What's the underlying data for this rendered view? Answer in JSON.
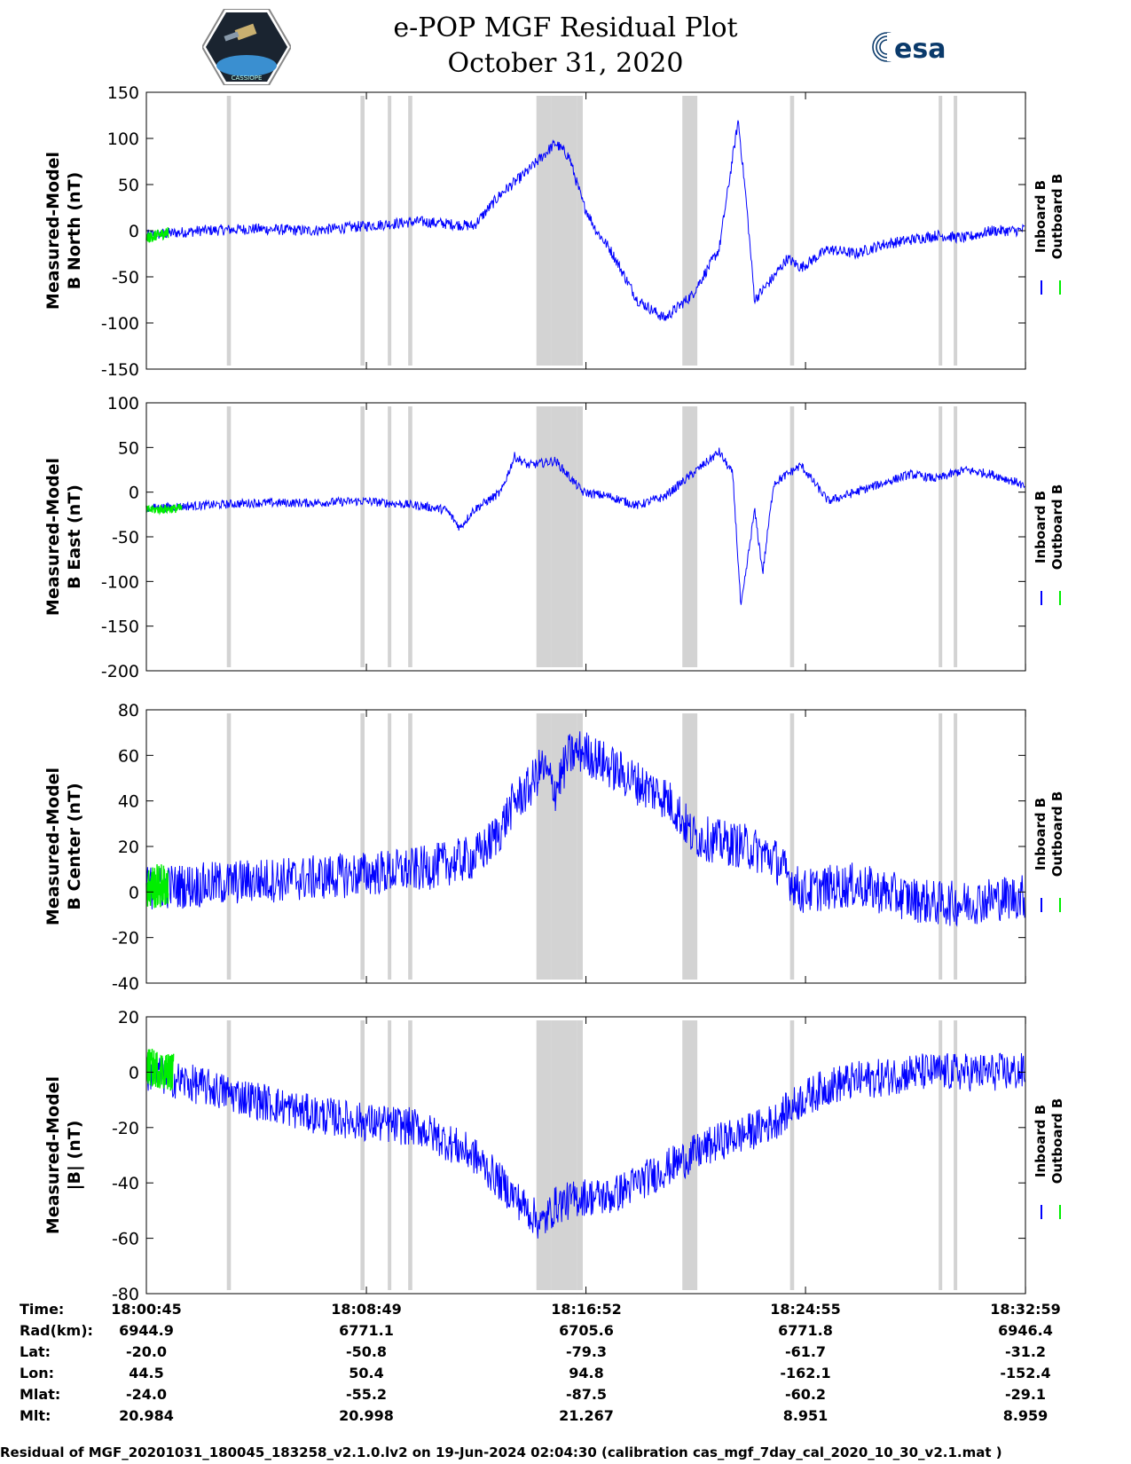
{
  "header": {
    "title_line1": "e-POP MGF Residual Plot",
    "title_line2": "October 31, 2020",
    "left_logo_text": "CASSIOPE",
    "right_logo_text": "esa"
  },
  "colors": {
    "inboard": "#0000ff",
    "outboard": "#00ee00",
    "gap": "#d3d3d3"
  },
  "chart_data": [
    {
      "type": "line",
      "ylabel_line1": "Measured-Model",
      "ylabel_line2": "B North (nT)",
      "ylim": [
        -150,
        150
      ],
      "yticks": [
        150,
        100,
        50,
        0,
        -50,
        -100,
        -150
      ],
      "legend": [
        "Inboard B",
        "Outboard B"
      ],
      "legend_placement": "right",
      "series": [
        {
          "name": "Inboard B",
          "x_min": [
            0,
            2,
            4,
            6,
            8,
            10,
            12,
            13,
            14,
            15,
            15.5,
            16,
            16.5,
            17,
            18,
            19,
            20,
            21,
            21.7,
            22,
            22.3,
            23,
            23.5,
            24,
            25,
            26,
            27,
            28,
            29,
            30,
            31,
            32,
            32.2
          ],
          "y": [
            -5,
            0,
            2,
            0,
            5,
            10,
            5,
            40,
            65,
            95,
            80,
            30,
            0,
            -20,
            -75,
            -95,
            -70,
            -20,
            120,
            30,
            -75,
            -50,
            -30,
            -40,
            -20,
            -25,
            -15,
            -10,
            -5,
            -8,
            0,
            0,
            2
          ]
        },
        {
          "name": "Outboard B",
          "x_min": [
            0,
            0.8
          ],
          "y": [
            -8,
            -2
          ]
        }
      ]
    },
    {
      "type": "line",
      "ylabel_line1": "Measured-Model",
      "ylabel_line2": "B East (nT)",
      "ylim": [
        -200,
        100
      ],
      "yticks": [
        100,
        50,
        0,
        -50,
        -100,
        -150,
        -200
      ],
      "legend": [
        "Inboard B",
        "Outboard B"
      ],
      "legend_placement": "right",
      "series": [
        {
          "name": "Inboard B",
          "x_min": [
            0,
            2,
            4,
            6,
            8,
            10,
            11,
            11.5,
            12,
            13,
            13.5,
            14,
            15,
            16,
            17,
            18,
            19,
            20,
            21,
            21.5,
            21.8,
            22.3,
            22.6,
            23,
            24,
            25,
            26,
            27,
            28,
            29,
            30,
            31,
            32,
            32.2
          ],
          "y": [
            -18,
            -15,
            -12,
            -12,
            -10,
            -15,
            -20,
            -40,
            -20,
            0,
            40,
            30,
            35,
            0,
            -5,
            -15,
            -5,
            20,
            45,
            20,
            -130,
            -20,
            -90,
            10,
            30,
            -10,
            0,
            10,
            20,
            15,
            25,
            20,
            10,
            5
          ]
        },
        {
          "name": "Outboard B",
          "x_min": [
            0,
            1.3
          ],
          "y": [
            -20,
            -18
          ]
        }
      ]
    },
    {
      "type": "line",
      "ylabel_line1": "Measured-Model",
      "ylabel_line2": "B Center (nT)",
      "ylim": [
        -40,
        80
      ],
      "yticks": [
        80,
        60,
        40,
        20,
        0,
        -20,
        -40
      ],
      "legend": [
        "Inboard B",
        "Outboard B"
      ],
      "legend_placement": "right",
      "series": [
        {
          "name": "Inboard B",
          "x_min": [
            0,
            2,
            4,
            6,
            8,
            10,
            12,
            12.5,
            13,
            13.5,
            14,
            14.5,
            15,
            15.5,
            16,
            17,
            18,
            19,
            19.5,
            20,
            21,
            22,
            23,
            24,
            25,
            26,
            27,
            28,
            29,
            30,
            31,
            32,
            32.2
          ],
          "y": [
            2,
            3,
            5,
            6,
            8,
            10,
            15,
            20,
            28,
            40,
            45,
            55,
            45,
            60,
            62,
            55,
            48,
            42,
            35,
            25,
            22,
            20,
            15,
            0,
            2,
            3,
            0,
            -3,
            -5,
            -5,
            -3,
            -2,
            -2
          ]
        },
        {
          "name": "Outboard B",
          "x_min": [
            0,
            0.8
          ],
          "y": [
            2,
            3
          ]
        }
      ]
    },
    {
      "type": "line",
      "ylabel_line1": "Measured-Model",
      "ylabel_line2": "|B| (nT)",
      "ylim": [
        -80,
        20
      ],
      "yticks": [
        20,
        0,
        -20,
        -40,
        -60,
        -80
      ],
      "legend": [
        "Inboard B",
        "Outboard B"
      ],
      "legend_placement": "right",
      "series": [
        {
          "name": "Inboard B",
          "x_min": [
            0,
            2,
            4,
            6,
            8,
            10,
            12,
            13,
            14,
            14.5,
            15,
            16,
            17,
            18,
            19,
            20,
            21,
            22,
            23,
            24,
            25,
            26,
            27,
            28,
            29,
            30,
            31,
            32,
            32.2
          ],
          "y": [
            0,
            -5,
            -10,
            -15,
            -18,
            -20,
            -30,
            -40,
            -50,
            -55,
            -48,
            -45,
            -45,
            -40,
            -35,
            -30,
            -25,
            -22,
            -18,
            -10,
            -5,
            -3,
            -2,
            0,
            0,
            0,
            0,
            0,
            0
          ]
        },
        {
          "name": "Outboard B",
          "x_min": [
            0,
            1
          ],
          "y": [
            2,
            0
          ]
        }
      ]
    }
  ],
  "gap_bands_min": [
    [
      2.95,
      3.1
    ],
    [
      7.85,
      8.0
    ],
    [
      8.85,
      8.98
    ],
    [
      9.6,
      9.75
    ],
    [
      14.3,
      14.85
    ],
    [
      14.85,
      15.8
    ],
    [
      15.8,
      16.0
    ],
    [
      19.65,
      20.2
    ],
    [
      23.6,
      23.75
    ],
    [
      29.05,
      29.18
    ],
    [
      29.6,
      29.73
    ]
  ],
  "time_table": {
    "labels": [
      "Time:",
      "Rad(km):",
      "Lat:",
      "Lon:",
      "Mlat:",
      "Mlt:"
    ],
    "columns": [
      {
        "time": "18:00:45",
        "rad": "6944.9",
        "lat": "-20.0",
        "lon": "44.5",
        "mlat": "-24.0",
        "mlt": "20.984"
      },
      {
        "time": "18:08:49",
        "rad": "6771.1",
        "lat": "-50.8",
        "lon": "50.4",
        "mlat": "-55.2",
        "mlt": "20.998"
      },
      {
        "time": "18:16:52",
        "rad": "6705.6",
        "lat": "-79.3",
        "lon": "94.8",
        "mlat": "-87.5",
        "mlt": "21.267"
      },
      {
        "time": "18:24:55",
        "rad": "6771.8",
        "lat": "-61.7",
        "lon": "-162.1",
        "mlat": "-60.2",
        "mlt": "8.951"
      },
      {
        "time": "18:32:59",
        "rad": "6946.4",
        "lat": "-31.2",
        "lon": "-152.4",
        "mlat": "-29.1",
        "mlt": "8.959"
      }
    ]
  },
  "footer": "Residual of MGF_20201031_180045_183258_v2.1.0.lv2 on 19-Jun-2024 02:04:30 (calibration cas_mgf_7day_cal_2020_10_30_v2.1.mat )"
}
